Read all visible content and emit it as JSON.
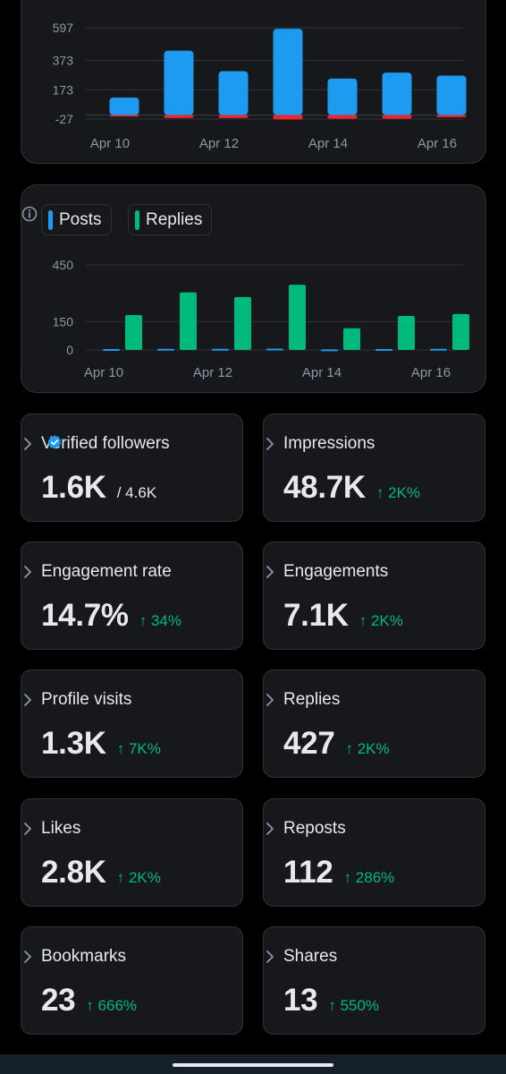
{
  "chart_data": [
    {
      "type": "bar",
      "categories": [
        "Apr 10",
        "Apr 11",
        "Apr 12",
        "Apr 13",
        "Apr 14",
        "Apr 15",
        "Apr 16"
      ],
      "x_tick_labels": [
        "Apr 10",
        "Apr 12",
        "Apr 14",
        "Apr 16"
      ],
      "y_tick_labels": [
        "597",
        "373",
        "173",
        "-27"
      ],
      "y_ticks": [
        597,
        373,
        173,
        -27
      ],
      "ylim": [
        -27,
        597
      ],
      "series": [
        {
          "values": [
            120,
            440,
            300,
            590,
            250,
            290,
            270
          ],
          "color": "#1d9bf0"
        },
        {
          "values": [
            -10,
            -20,
            -20,
            -30,
            -25,
            -25,
            -15
          ],
          "color": "#f4212e"
        }
      ],
      "grid": true
    },
    {
      "type": "bar",
      "categories": [
        "Apr 10",
        "Apr 11",
        "Apr 12",
        "Apr 13",
        "Apr 14",
        "Apr 15",
        "Apr 16"
      ],
      "x_tick_labels": [
        "Apr 10",
        "Apr 12",
        "Apr 14",
        "Apr 16"
      ],
      "y_tick_labels": [
        "450",
        "150",
        "0"
      ],
      "y_ticks": [
        450,
        150,
        0
      ],
      "ylim": [
        0,
        450
      ],
      "legend": "top-left",
      "series": [
        {
          "name": "Posts",
          "values": [
            5,
            6,
            6,
            7,
            3,
            5,
            6
          ],
          "color": "#1d9bf0"
        },
        {
          "name": "Replies",
          "values": [
            185,
            305,
            280,
            345,
            115,
            180,
            190
          ],
          "color": "#00ba7c"
        }
      ],
      "grid": true
    }
  ],
  "stats": [
    {
      "label": "Verified followers",
      "value": "1.6K",
      "sub": "/ 4.6K",
      "change": ""
    },
    {
      "label": "Impressions",
      "value": "48.7K",
      "change": "↑ 2K%"
    },
    {
      "label": "Engagement rate",
      "value": "14.7%",
      "change": "↑ 34%"
    },
    {
      "label": "Engagements",
      "value": "7.1K",
      "change": "↑ 2K%"
    },
    {
      "label": "Profile visits",
      "value": "1.3K",
      "change": "↑ 7K%"
    },
    {
      "label": "Replies",
      "value": "427",
      "change": "↑ 2K%"
    },
    {
      "label": "Likes",
      "value": "2.8K",
      "change": "↑ 2K%"
    },
    {
      "label": "Reposts",
      "value": "112",
      "change": "↑ 286%"
    },
    {
      "label": "Bookmarks",
      "value": "23",
      "change": "↑ 666%"
    },
    {
      "label": "Shares",
      "value": "13",
      "change": "↑ 550%"
    }
  ],
  "icons": {
    "verified": "verified-badge-icon",
    "info": "info-icon",
    "chevron": "chevron-right-icon"
  },
  "colors": {
    "accent_blue": "#1d9bf0",
    "accent_green": "#00ba7c",
    "accent_red": "#f4212e",
    "card_bg": "#16181c"
  }
}
